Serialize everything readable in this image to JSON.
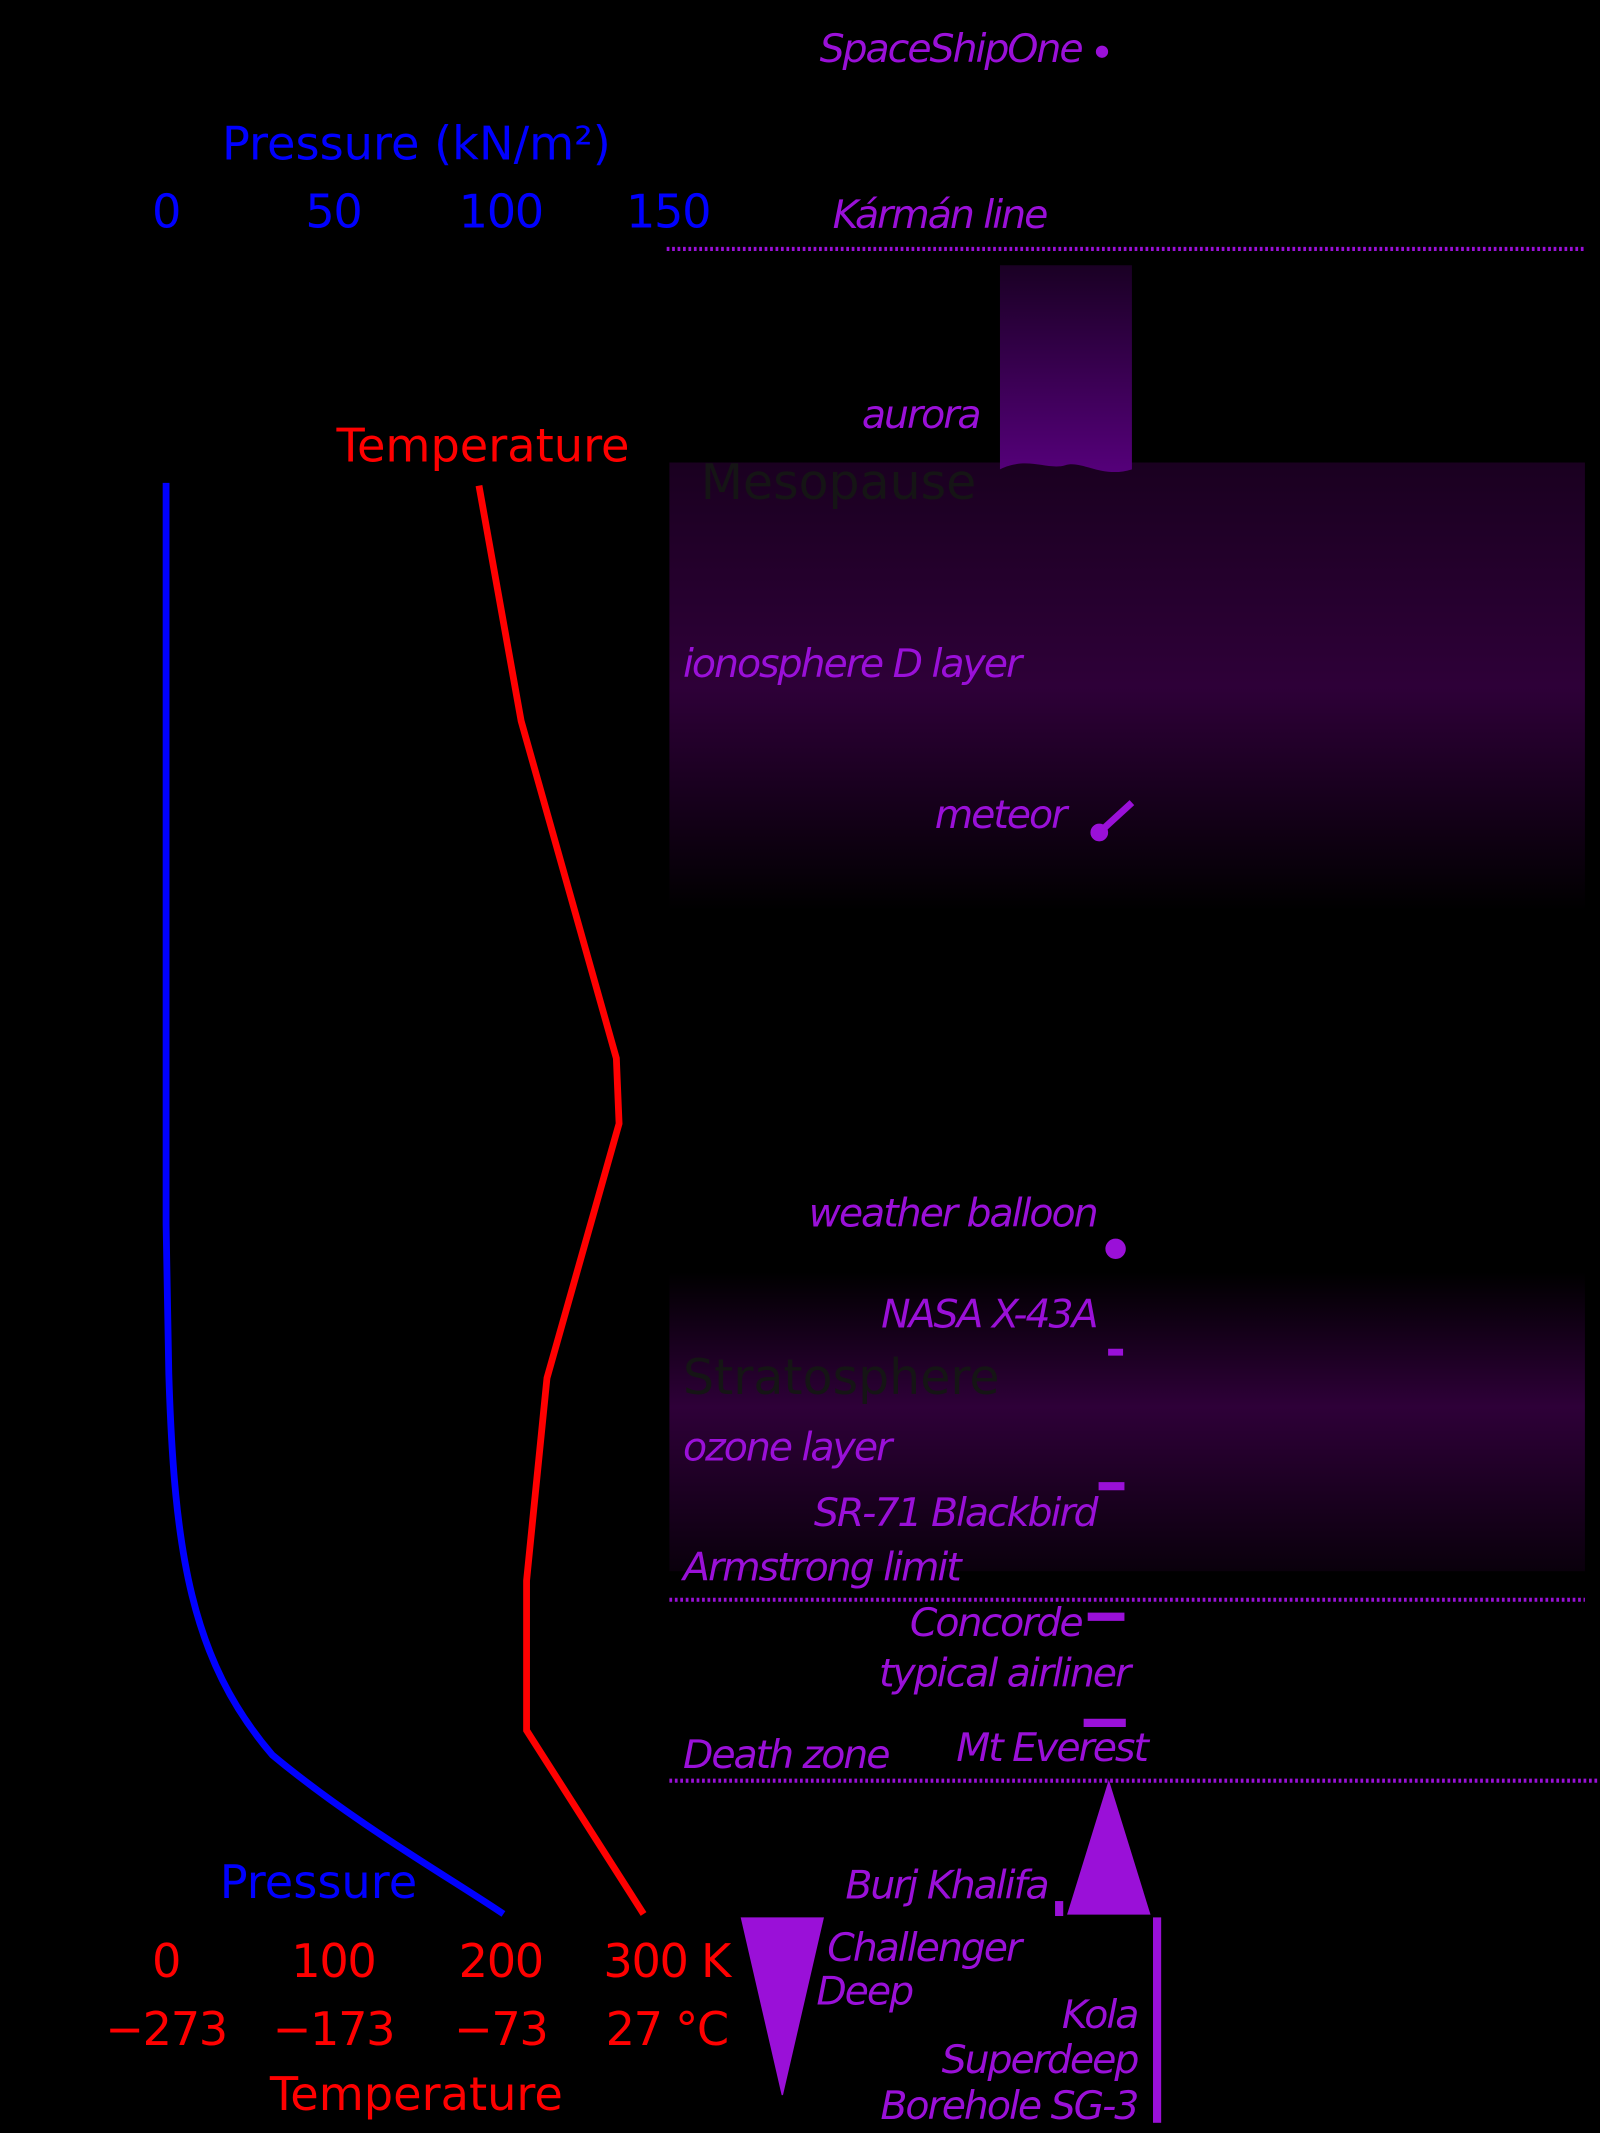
{
  "pressure_axis": {
    "title": "Pressure (kN/m²)",
    "ticks": [
      "0",
      "50",
      "100",
      "150"
    ],
    "curve_label": "Pressure"
  },
  "temperature_axis": {
    "title": "Temperature",
    "kelvin_ticks": [
      "0",
      "100",
      "200",
      "300 K"
    ],
    "celsius_ticks": [
      "−273",
      "−173",
      "−73",
      "27 °C"
    ],
    "curve_label": "Temperature"
  },
  "layers": {
    "mesopause": "Mesopause",
    "stratosphere": "Stratosphere"
  },
  "labels": {
    "spaceshipone": "SpaceShipOne",
    "karman_line": "Kármán line",
    "aurora": "aurora",
    "ionosphere": "ionosphere D layer",
    "meteor": "meteor",
    "weather_balloon": "weather balloon",
    "x43a": "NASA X-43A",
    "ozone": "ozone layer",
    "sr71": "SR-71 Blackbird",
    "armstrong": "Armstrong limit",
    "concorde": "Concorde",
    "airliner": "typical airliner",
    "death_zone": "Death zone",
    "everest": "Mt Everest",
    "burj": "Burj Khalifa",
    "challenger": [
      "Challenger",
      "Deep"
    ],
    "kola": [
      "Kola",
      "Superdeep",
      "Borehole SG-3"
    ]
  }
}
